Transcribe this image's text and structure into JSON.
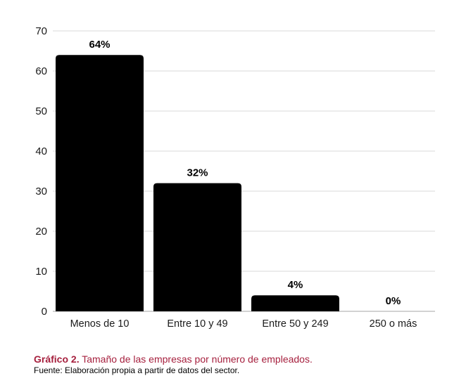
{
  "chart_data": {
    "type": "bar",
    "categories": [
      "Menos de 10",
      "Entre 10 y 49",
      "Entre 50 y 249",
      "250 o más"
    ],
    "values": [
      64,
      32,
      4,
      0
    ],
    "data_labels": [
      "64%",
      "32%",
      "4%",
      "0%"
    ],
    "xlabel": "",
    "ylabel": "",
    "ylim": [
      0,
      70
    ],
    "yticks": [
      0,
      10,
      20,
      30,
      40,
      50,
      60,
      70
    ],
    "grid": "horizontal",
    "legend": "none",
    "figure_label": "Gráfico 2.",
    "title": "Tamaño de las empresas por número de empleados.",
    "source": "Fuente: Elaboración propia a partir de datos del sector."
  },
  "colors": {
    "bar": "#000000",
    "grid": "#d9d9d9",
    "axis": "#a6a6a6",
    "caption": "#a6203e",
    "text": "#000000"
  }
}
